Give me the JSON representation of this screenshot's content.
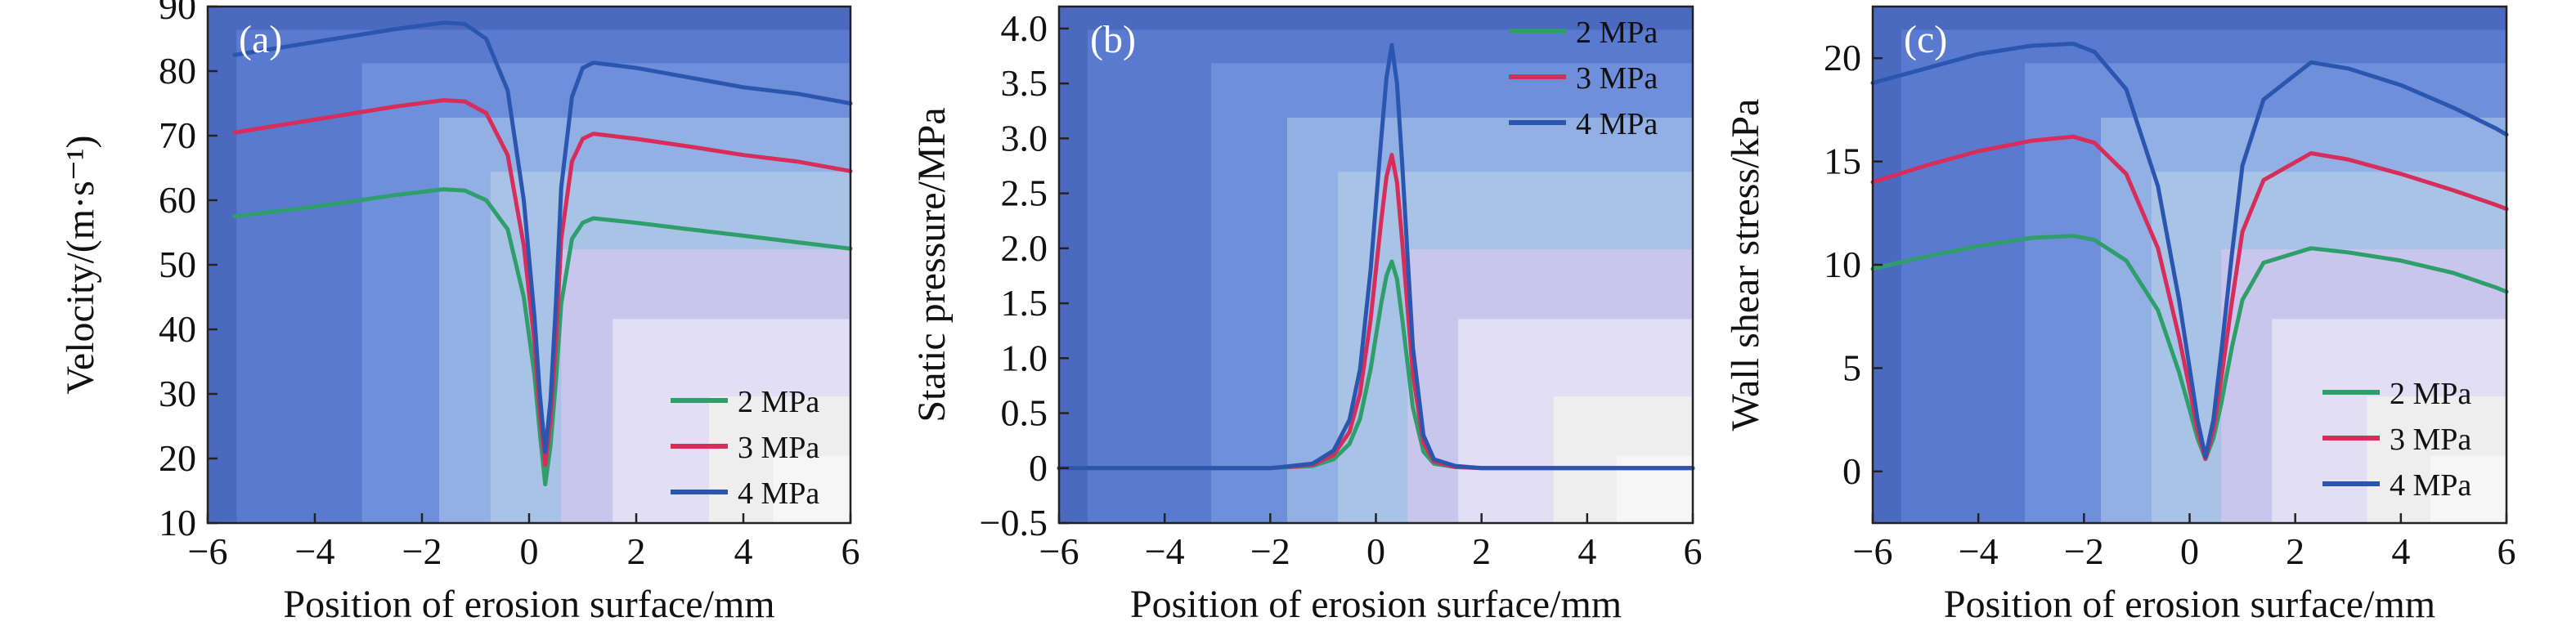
{
  "chart_data": [
    {
      "type": "line",
      "panel_label": "(a)",
      "xlabel": "Position of erosion surface/mm",
      "ylabel": "Velocity/(m·s⁻¹)",
      "xlim": [
        -6,
        6
      ],
      "ylim": [
        10,
        90
      ],
      "xticks": [
        -6,
        -4,
        -2,
        0,
        2,
        4,
        6
      ],
      "yticks": [
        10,
        20,
        30,
        40,
        50,
        60,
        70,
        80,
        90
      ],
      "legend_position": "bottom-right",
      "grid": false,
      "series": [
        {
          "name": "2 MPa",
          "color": "#2e9e6b",
          "x": [
            -5.5,
            -4,
            -2.5,
            -1.6,
            -1.2,
            -0.8,
            -0.4,
            -0.1,
            0.1,
            0.2,
            0.3,
            0.4,
            0.5,
            0.6,
            0.8,
            1.0,
            1.2,
            2,
            3,
            4,
            5,
            6
          ],
          "y": [
            57.5,
            59,
            60.8,
            61.7,
            61.5,
            60,
            55.5,
            45,
            33,
            24,
            16,
            22,
            32,
            44,
            54,
            56.5,
            57.2,
            56.5,
            55.5,
            54.5,
            53.5,
            52.5
          ]
        },
        {
          "name": "3 MPa",
          "color": "#d62d5a",
          "x": [
            -5.5,
            -4,
            -2.5,
            -1.6,
            -1.2,
            -0.8,
            -0.4,
            -0.1,
            0.1,
            0.2,
            0.3,
            0.4,
            0.5,
            0.6,
            0.8,
            1.0,
            1.2,
            2,
            3,
            4,
            5,
            6
          ],
          "y": [
            70.5,
            72.5,
            74.5,
            75.5,
            75.3,
            73.5,
            67,
            53,
            38,
            27,
            19,
            26,
            38,
            54,
            66,
            69.5,
            70.3,
            69.5,
            68.3,
            67,
            66,
            64.5
          ]
        },
        {
          "name": "4 MPa",
          "color": "#2a56b0",
          "x": [
            -5.5,
            -4,
            -2.5,
            -1.6,
            -1.2,
            -0.8,
            -0.4,
            -0.1,
            0.1,
            0.2,
            0.3,
            0.4,
            0.5,
            0.6,
            0.8,
            1.0,
            1.2,
            2,
            3,
            4,
            5,
            6
          ],
          "y": [
            82.5,
            84.5,
            86.5,
            87.5,
            87.3,
            85,
            77,
            60,
            42,
            30,
            21,
            29,
            44,
            62,
            76,
            80.5,
            81.3,
            80.5,
            79,
            77.5,
            76.5,
            75
          ]
        }
      ]
    },
    {
      "type": "line",
      "panel_label": "(b)",
      "xlabel": "Position of erosion surface/mm",
      "ylabel": "Static pressure/MPa",
      "xlim": [
        -6,
        6
      ],
      "ylim": [
        -0.5,
        4.2
      ],
      "xticks": [
        -6,
        -4,
        -2,
        0,
        2,
        4,
        6
      ],
      "yticks": [
        -0.5,
        0,
        0.5,
        1.0,
        1.5,
        2.0,
        2.5,
        3.0,
        3.5,
        4.0
      ],
      "ytick_labels": [
        "−0.5",
        "0",
        "0.5",
        "1.0",
        "1.5",
        "2.0",
        "2.5",
        "3.0",
        "3.5",
        "4.0"
      ],
      "legend_position": "top-right",
      "grid": false,
      "series": [
        {
          "name": "2 MPa",
          "color": "#2e9e6b",
          "x": [
            -6,
            -2,
            -1.2,
            -0.8,
            -0.5,
            -0.3,
            -0.1,
            0.1,
            0.2,
            0.3,
            0.4,
            0.5,
            0.7,
            0.9,
            1.1,
            1.5,
            2,
            6
          ],
          "y": [
            0,
            0,
            0.02,
            0.08,
            0.22,
            0.45,
            0.9,
            1.5,
            1.75,
            1.88,
            1.72,
            1.35,
            0.55,
            0.15,
            0.04,
            0.01,
            0,
            0
          ]
        },
        {
          "name": "3 MPa",
          "color": "#d62d5a",
          "x": [
            -6,
            -2,
            -1.2,
            -0.8,
            -0.5,
            -0.3,
            -0.1,
            0.1,
            0.2,
            0.3,
            0.4,
            0.5,
            0.7,
            0.9,
            1.1,
            1.5,
            2,
            6
          ],
          "y": [
            0,
            0,
            0.03,
            0.12,
            0.33,
            0.68,
            1.35,
            2.25,
            2.65,
            2.85,
            2.6,
            2.05,
            0.85,
            0.23,
            0.06,
            0.01,
            0,
            0
          ]
        },
        {
          "name": "4 MPa",
          "color": "#2a56b0",
          "x": [
            -6,
            -2,
            -1.2,
            -0.8,
            -0.5,
            -0.3,
            -0.1,
            0.1,
            0.2,
            0.3,
            0.4,
            0.5,
            0.7,
            0.9,
            1.1,
            1.5,
            2,
            6
          ],
          "y": [
            0,
            0,
            0.04,
            0.16,
            0.44,
            0.9,
            1.8,
            3.0,
            3.55,
            3.85,
            3.5,
            2.75,
            1.1,
            0.3,
            0.08,
            0.02,
            0,
            0
          ]
        }
      ]
    },
    {
      "type": "line",
      "panel_label": "(c)",
      "xlabel": "Position of erosion surface/mm",
      "ylabel": "Wall shear stress/kPa",
      "xlim": [
        -6,
        6
      ],
      "ylim": [
        -2.5,
        22.5
      ],
      "xticks": [
        -6,
        -4,
        -2,
        0,
        2,
        4,
        6
      ],
      "yticks": [
        0,
        5,
        10,
        15,
        20
      ],
      "legend_position": "bottom-right",
      "grid": false,
      "series": [
        {
          "name": "2 MPa",
          "color": "#2e9e6b",
          "x": [
            -6,
            -5,
            -4,
            -3,
            -2.2,
            -1.8,
            -1.2,
            -0.6,
            -0.2,
            0,
            0.15,
            0.3,
            0.45,
            0.6,
            0.8,
            1.0,
            1.4,
            2.3,
            3,
            4,
            5,
            5.8,
            6
          ],
          "y": [
            9.8,
            10.4,
            10.9,
            11.3,
            11.4,
            11.2,
            10.2,
            7.8,
            4.8,
            3,
            1.6,
            0.6,
            1.6,
            3.3,
            6,
            8.3,
            10.1,
            10.8,
            10.6,
            10.2,
            9.6,
            8.9,
            8.7
          ]
        },
        {
          "name": "3 MPa",
          "color": "#d62d5a",
          "x": [
            -6,
            -5,
            -4,
            -3,
            -2.2,
            -1.8,
            -1.2,
            -0.6,
            -0.2,
            0,
            0.15,
            0.3,
            0.45,
            0.6,
            0.8,
            1.0,
            1.4,
            2.3,
            3,
            4,
            5,
            5.8,
            6
          ],
          "y": [
            14,
            14.8,
            15.5,
            16,
            16.2,
            15.9,
            14.4,
            10.8,
            6.5,
            4,
            2,
            0.6,
            2,
            4.5,
            8.2,
            11.6,
            14.1,
            15.4,
            15.1,
            14.4,
            13.6,
            12.9,
            12.7
          ]
        },
        {
          "name": "4 MPa",
          "color": "#2a56b0",
          "x": [
            -6,
            -5,
            -4,
            -3,
            -2.2,
            -1.8,
            -1.2,
            -0.6,
            -0.2,
            0,
            0.15,
            0.3,
            0.45,
            0.6,
            0.8,
            1.0,
            1.4,
            2.3,
            3,
            4,
            5,
            5.8,
            6
          ],
          "y": [
            18.8,
            19.5,
            20.2,
            20.6,
            20.7,
            20.3,
            18.5,
            13.8,
            8.3,
            5,
            2.5,
            0.7,
            2.5,
            5.8,
            10.5,
            14.8,
            18,
            19.8,
            19.5,
            18.7,
            17.6,
            16.6,
            16.3
          ]
        }
      ]
    }
  ]
}
